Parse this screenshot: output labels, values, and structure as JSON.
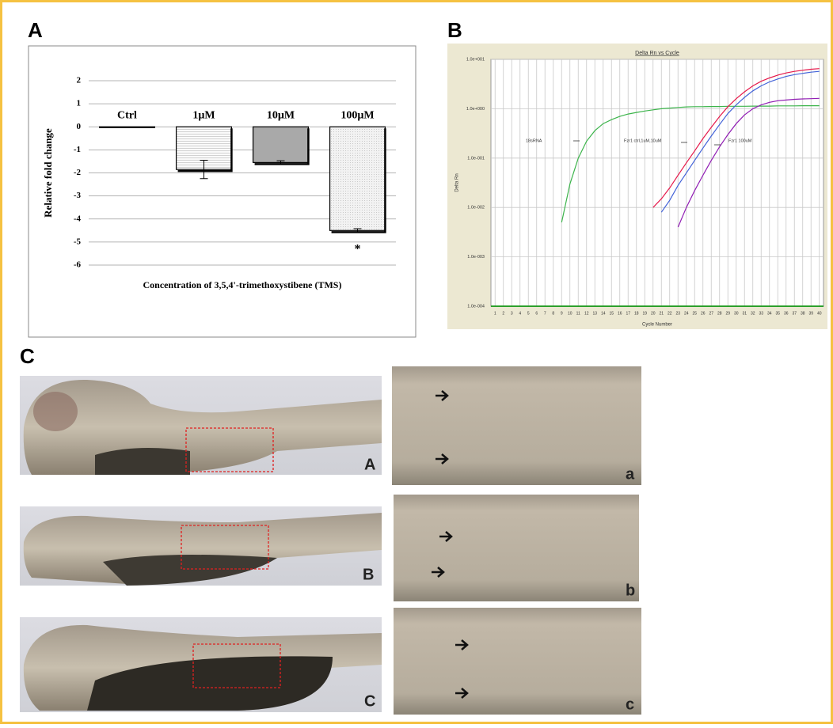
{
  "panels": [
    "A",
    "B",
    "C"
  ],
  "chart_data": [
    {
      "type": "bar",
      "y_label": "Relative fold change",
      "x_label": "Concentration of 3,5,4'-trimethoxystibene (TMS)",
      "categories": [
        "Ctrl",
        "1µM",
        "10µM",
        "100µM"
      ],
      "values": [
        0,
        -1.85,
        -1.55,
        -4.5
      ],
      "errors": [
        0,
        0.4,
        0.08,
        0.08
      ],
      "colors": [
        "#ffffff",
        "#f3f3f3",
        "#a9a9a9",
        "#ebebeb"
      ],
      "annotation": "*",
      "ylim": [
        -6,
        2
      ],
      "yticks": [
        -6,
        -5,
        -4,
        -3,
        -2,
        -1,
        0,
        1,
        2
      ],
      "grid": true
    },
    {
      "type": "line",
      "title": "Delta Rn vs Cycle",
      "x_label": "Cycle Number",
      "y_label": "Delta Rn",
      "log_scale": true,
      "grid": true,
      "annotations": [
        "18sRNA",
        "Fzr1 ctrl,1uM,10uM",
        "Fzr1 100uM"
      ],
      "x": [
        1,
        2,
        3,
        4,
        5,
        6,
        7,
        8,
        9,
        10,
        11,
        12,
        13,
        14,
        15,
        16,
        17,
        18,
        19,
        20,
        21,
        22,
        23,
        24,
        25,
        26,
        27,
        28,
        29,
        30,
        31,
        32,
        33,
        34,
        35,
        36,
        37,
        38,
        39,
        40
      ],
      "series": [
        {
          "color": "#3cb44b",
          "values": [
            null,
            null,
            null,
            null,
            null,
            null,
            null,
            null,
            0.005,
            0.03,
            0.1,
            0.22,
            0.36,
            0.5,
            0.6,
            0.7,
            0.78,
            0.84,
            0.9,
            0.95,
            1.0,
            1.03,
            1.06,
            1.09,
            1.1,
            1.1,
            1.11,
            1.11,
            1.12,
            1.12,
            1.12,
            1.13,
            1.13,
            1.13,
            1.14,
            1.14,
            1.14,
            1.15,
            1.15,
            1.15
          ]
        },
        {
          "color": "#e6194b",
          "values": [
            null,
            null,
            null,
            null,
            null,
            null,
            null,
            null,
            null,
            null,
            null,
            null,
            null,
            null,
            null,
            null,
            null,
            null,
            null,
            0.01,
            0.015,
            0.025,
            0.045,
            0.08,
            0.14,
            0.25,
            0.42,
            0.7,
            1.1,
            1.6,
            2.2,
            2.9,
            3.6,
            4.2,
            4.8,
            5.3,
            5.7,
            6.0,
            6.3,
            6.5
          ]
        },
        {
          "color": "#4363d8",
          "values": [
            null,
            null,
            null,
            null,
            null,
            null,
            null,
            null,
            null,
            null,
            null,
            null,
            null,
            null,
            null,
            null,
            null,
            null,
            null,
            null,
            0.008,
            0.014,
            0.028,
            0.05,
            0.09,
            0.16,
            0.28,
            0.48,
            0.8,
            1.2,
            1.7,
            2.3,
            2.9,
            3.5,
            4.0,
            4.5,
            4.9,
            5.2,
            5.5,
            5.7
          ]
        },
        {
          "color": "#911eb4",
          "values": [
            null,
            null,
            null,
            null,
            null,
            null,
            null,
            null,
            null,
            null,
            null,
            null,
            null,
            null,
            null,
            null,
            null,
            null,
            null,
            null,
            null,
            null,
            0.004,
            0.01,
            0.022,
            0.045,
            0.09,
            0.17,
            0.3,
            0.5,
            0.75,
            1.0,
            1.2,
            1.35,
            1.45,
            1.5,
            1.55,
            1.58,
            1.6,
            1.62
          ]
        }
      ],
      "ylim": [
        0.0001,
        10
      ],
      "yticks": [
        {
          "value": 0.0001,
          "label": "1.0e-004"
        },
        {
          "value": 0.001,
          "label": "1.0e-003"
        },
        {
          "value": 0.01,
          "label": "1.0e-002"
        },
        {
          "value": 0.1,
          "label": "1.0e-001"
        },
        {
          "value": 1,
          "label": "1.0e+000"
        },
        {
          "value": 10,
          "label": "1.0e+001"
        }
      ],
      "xlim": [
        0.5,
        40.5
      ],
      "xticks": [
        1,
        2,
        3,
        4,
        5,
        6,
        7,
        8,
        9,
        10,
        11,
        12,
        13,
        14,
        15,
        16,
        17,
        18,
        19,
        20,
        21,
        22,
        23,
        24,
        25,
        26,
        27,
        28,
        29,
        30,
        31,
        32,
        33,
        34,
        35,
        36,
        37,
        38,
        39,
        40
      ]
    }
  ],
  "images": {
    "left_labels": [
      "A",
      "B",
      "C"
    ],
    "right_labels": [
      "a",
      "b",
      "c"
    ]
  }
}
